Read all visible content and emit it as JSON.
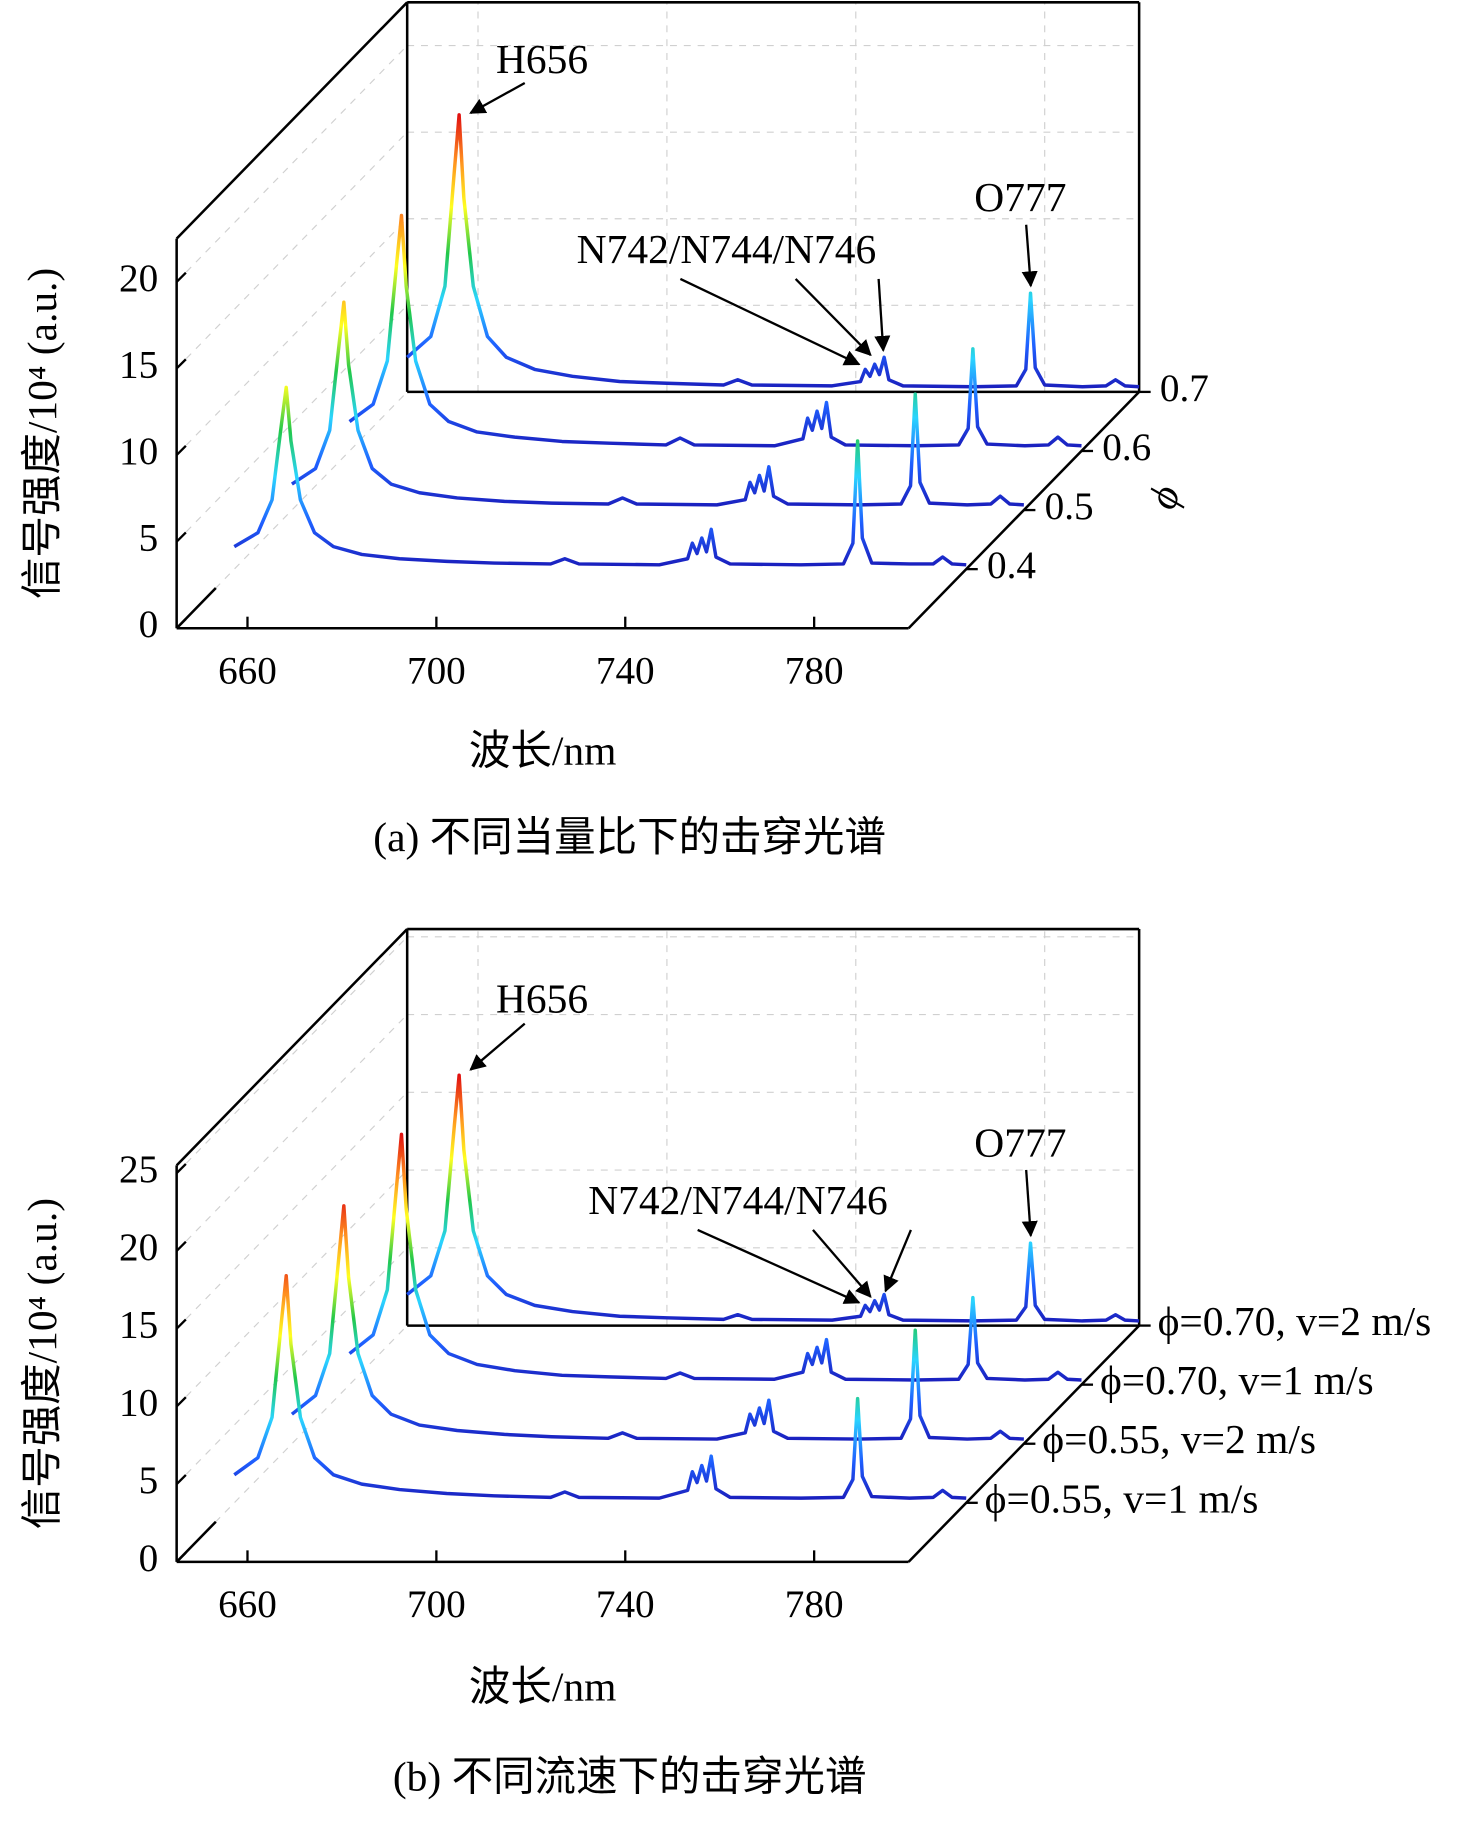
{
  "chart_data": [
    {
      "type": "waterfall",
      "caption": "(a) 不同当量比下的击穿光谱",
      "xlabel": "波长/nm",
      "ylabel": "信号强度/10⁴ (a.u.)",
      "zlabel": "ϕ",
      "x": [
        645,
        650,
        653,
        655,
        656,
        657,
        659,
        662,
        666,
        672,
        680,
        690,
        700,
        712,
        715,
        718,
        735,
        741,
        742,
        743,
        744,
        745,
        746,
        747,
        750,
        765,
        774,
        776,
        777,
        778,
        780,
        788,
        793,
        795,
        797,
        800
      ],
      "xlim": [
        645,
        800
      ],
      "xticks": [
        660,
        700,
        740,
        780
      ],
      "ylim": [
        0,
        22.5
      ],
      "yticks": [
        0,
        5,
        10,
        15,
        20
      ],
      "zlim": [
        0.3,
        0.7
      ],
      "zticks": [
        0.4,
        0.5,
        0.6,
        0.7
      ],
      "colormap": [
        "#1a1ab8",
        "#1f5fff",
        "#2ad4ff",
        "#22c84a",
        "#ffff20",
        "#ff9020",
        "#e01010"
      ],
      "series": [
        {
          "z": 0.4,
          "values": [
            1.3,
            2.1,
            4.0,
            8.4,
            10.5,
            7.4,
            4.0,
            2.1,
            1.3,
            0.85,
            0.6,
            0.45,
            0.35,
            0.3,
            0.6,
            0.3,
            0.25,
            0.6,
            1.5,
            0.9,
            1.8,
            1.0,
            2.3,
            0.7,
            0.3,
            0.25,
            0.3,
            1.5,
            7.4,
            1.8,
            0.35,
            0.3,
            0.3,
            0.7,
            0.3,
            0.25
          ]
        },
        {
          "z": 0.5,
          "values": [
            1.5,
            2.4,
            4.6,
            9.6,
            12.0,
            8.4,
            4.6,
            2.4,
            1.5,
            1.0,
            0.7,
            0.5,
            0.4,
            0.35,
            0.7,
            0.35,
            0.3,
            0.6,
            1.6,
            1.0,
            2.0,
            1.1,
            2.5,
            0.8,
            0.35,
            0.3,
            0.35,
            1.4,
            6.7,
            1.6,
            0.4,
            0.3,
            0.35,
            0.8,
            0.35,
            0.3
          ]
        },
        {
          "z": 0.6,
          "values": [
            1.7,
            2.7,
            5.2,
            10.9,
            13.6,
            9.5,
            5.2,
            2.7,
            1.7,
            1.1,
            0.8,
            0.55,
            0.45,
            0.35,
            0.75,
            0.35,
            0.3,
            0.7,
            1.9,
            1.2,
            2.3,
            1.3,
            2.8,
            0.8,
            0.35,
            0.3,
            0.35,
            1.3,
            5.9,
            1.4,
            0.4,
            0.3,
            0.35,
            0.8,
            0.35,
            0.3
          ]
        },
        {
          "z": 0.7,
          "values": [
            2.0,
            3.2,
            6.1,
            12.8,
            16.0,
            11.2,
            6.1,
            3.2,
            2.0,
            1.3,
            0.9,
            0.6,
            0.5,
            0.4,
            0.7,
            0.4,
            0.35,
            0.6,
            1.3,
            0.9,
            1.6,
            1.0,
            2.0,
            0.7,
            0.35,
            0.3,
            0.35,
            1.3,
            5.7,
            1.4,
            0.4,
            0.3,
            0.35,
            0.7,
            0.35,
            0.3
          ]
        }
      ],
      "annotations": [
        {
          "text": "H656"
        },
        {
          "text": "N742/N744/N746"
        },
        {
          "text": "O777"
        }
      ]
    },
    {
      "type": "waterfall",
      "caption": "(b) 不同流速下的击穿光谱",
      "xlabel": "波长/nm",
      "ylabel": "信号强度/10⁴ (a.u.)",
      "x": [
        645,
        650,
        653,
        655,
        656,
        657,
        659,
        662,
        666,
        672,
        680,
        690,
        700,
        712,
        715,
        718,
        735,
        741,
        742,
        743,
        744,
        745,
        746,
        747,
        750,
        765,
        774,
        776,
        777,
        778,
        780,
        788,
        793,
        795,
        797,
        800
      ],
      "xlim": [
        645,
        800
      ],
      "xticks": [
        660,
        700,
        740,
        780
      ],
      "ylim": [
        0,
        25.5
      ],
      "yticks": [
        0,
        5,
        10,
        15,
        20,
        25
      ],
      "colormap": [
        "#1a1ab8",
        "#1f5fff",
        "#2ad4ff",
        "#22c84a",
        "#ffff20",
        "#ff9020",
        "#e01010"
      ],
      "series": [
        {
          "name": "ϕ=0.55, v=1 m/s",
          "values": [
            1.8,
            2.9,
            5.5,
            11.7,
            14.6,
            10.2,
            5.5,
            2.9,
            1.8,
            1.2,
            0.85,
            0.6,
            0.45,
            0.35,
            0.7,
            0.35,
            0.3,
            0.8,
            2.0,
            1.3,
            2.4,
            1.4,
            3.0,
            0.9,
            0.35,
            0.3,
            0.35,
            1.5,
            6.7,
            1.7,
            0.4,
            0.3,
            0.35,
            0.8,
            0.35,
            0.3
          ]
        },
        {
          "name": "ϕ=0.55, v=2 m/s",
          "values": [
            1.9,
            3.1,
            5.8,
            12.2,
            15.3,
            10.7,
            5.8,
            3.1,
            1.9,
            1.2,
            0.85,
            0.6,
            0.45,
            0.35,
            0.7,
            0.35,
            0.3,
            0.7,
            1.9,
            1.2,
            2.3,
            1.3,
            2.8,
            0.8,
            0.35,
            0.3,
            0.35,
            1.6,
            7.3,
            1.8,
            0.4,
            0.3,
            0.35,
            0.8,
            0.35,
            0.3
          ]
        },
        {
          "name": "ϕ=0.70, v=1 m/s",
          "values": [
            2.0,
            3.2,
            6.1,
            12.9,
            16.1,
            11.3,
            6.1,
            3.2,
            2.0,
            1.3,
            0.9,
            0.6,
            0.5,
            0.4,
            0.75,
            0.4,
            0.35,
            0.8,
            2.0,
            1.3,
            2.4,
            1.4,
            2.9,
            0.8,
            0.35,
            0.3,
            0.35,
            1.3,
            5.6,
            1.4,
            0.4,
            0.3,
            0.35,
            0.8,
            0.35,
            0.3
          ]
        },
        {
          "name": "ϕ=0.70, v=2 m/s",
          "values": [
            2.0,
            3.2,
            6.1,
            12.9,
            16.1,
            11.3,
            6.1,
            3.2,
            2.0,
            1.3,
            0.9,
            0.6,
            0.5,
            0.4,
            0.7,
            0.4,
            0.35,
            0.6,
            1.3,
            0.9,
            1.6,
            1.0,
            2.0,
            0.7,
            0.35,
            0.3,
            0.35,
            1.2,
            5.3,
            1.3,
            0.4,
            0.3,
            0.35,
            0.7,
            0.35,
            0.3
          ]
        }
      ],
      "annotations": [
        {
          "text": "H656"
        },
        {
          "text": "N742/N744/N746"
        },
        {
          "text": "O777"
        }
      ]
    }
  ]
}
